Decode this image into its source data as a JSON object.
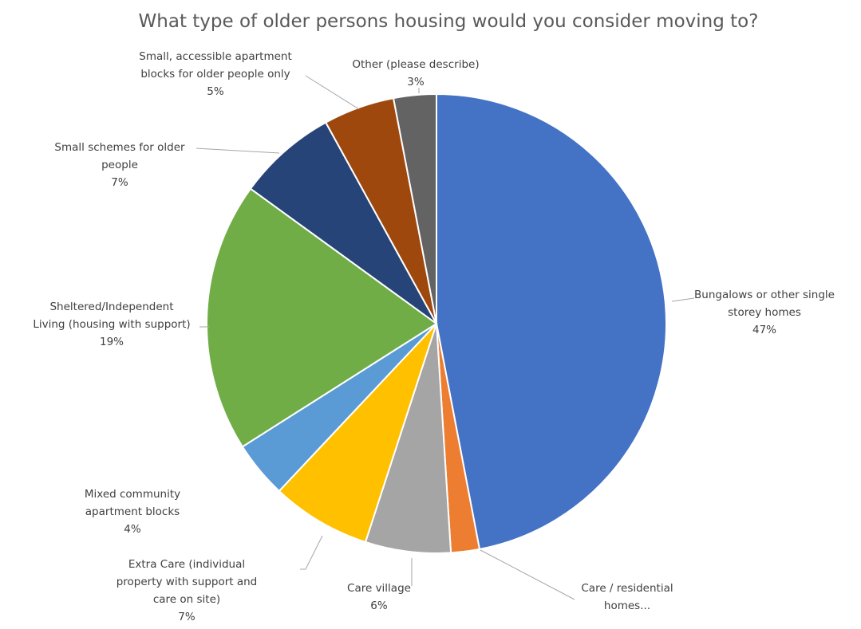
{
  "chart_data": {
    "type": "pie",
    "title": "What type of older persons housing would you consider moving to?",
    "slices": [
      {
        "label": [
          "Bungalows or other single",
          "storey homes"
        ],
        "value": 47,
        "display": "47%",
        "color": "#4472C4"
      },
      {
        "label": [
          "Care / residential",
          "homes..."
        ],
        "value": 2,
        "display": "",
        "color": "#ED7D31"
      },
      {
        "label": [
          "Care village"
        ],
        "value": 6,
        "display": "6%",
        "color": "#A5A5A5"
      },
      {
        "label": [
          "Extra Care (individual",
          "property with support and",
          "care on site)"
        ],
        "value": 7,
        "display": "7%",
        "color": "#FFC000"
      },
      {
        "label": [
          "Mixed community",
          "apartment blocks"
        ],
        "value": 4,
        "display": "4%",
        "color": "#5B9BD5"
      },
      {
        "label": [
          "Sheltered/Independent",
          "Living (housing with support)"
        ],
        "value": 19,
        "display": "19%",
        "color": "#70AD47"
      },
      {
        "label": [
          "Small schemes for older",
          "people"
        ],
        "value": 7,
        "display": "7%",
        "color": "#264478"
      },
      {
        "label": [
          "Small, accessible apartment",
          "blocks for older people only"
        ],
        "value": 5,
        "display": "5%",
        "color": "#9E480E"
      },
      {
        "label": [
          "Other (please describe)"
        ],
        "value": 3,
        "display": "3%",
        "color": "#636363"
      }
    ]
  }
}
